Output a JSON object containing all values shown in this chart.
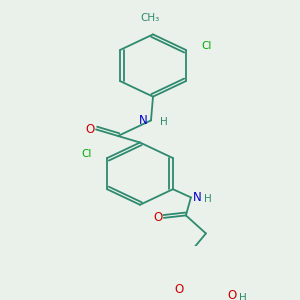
{
  "bg_color": "#eaf0ea",
  "bond_color": "#2d8a6e",
  "atom_colors": {
    "N": "#0000cc",
    "O": "#cc0000",
    "Cl": "#00aa00",
    "C": "#2d8a6e",
    "H": "#2d8a6e"
  },
  "lw": 1.3,
  "fs": 8.5,
  "fs_small": 7.5
}
